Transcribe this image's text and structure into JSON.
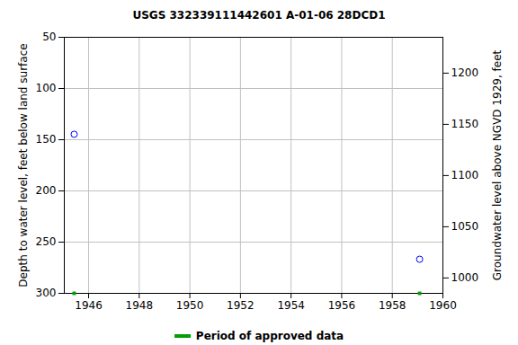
{
  "chart_data": {
    "type": "scatter",
    "title": "USGS 332339111442601 A-01-06 28DCD1",
    "x_label": null,
    "y_label": "Depth to water level, feet below land surface",
    "y2_label": "Groundwater level above NGVD 1929, feet",
    "x": [
      1945.43,
      1959.08
    ],
    "values": [
      144.7,
      266.7
    ],
    "color": "#0000ff",
    "marker": "circle",
    "xlim": [
      1945.04,
      1960
    ],
    "xticks": [
      1946,
      1948,
      1950,
      1952,
      1954,
      1956,
      1958,
      1960
    ],
    "ylim": [
      300,
      50
    ],
    "yticks": [
      50,
      100,
      150,
      200,
      250,
      300
    ],
    "y2lim": [
      985,
      1235
    ],
    "y2ticks": [
      1000,
      1050,
      1100,
      1150,
      1200
    ],
    "grid": true,
    "approved_data": {
      "name": "Period of approved data",
      "color": "#00a000",
      "x": [
        1945.43,
        1959.08
      ]
    }
  }
}
